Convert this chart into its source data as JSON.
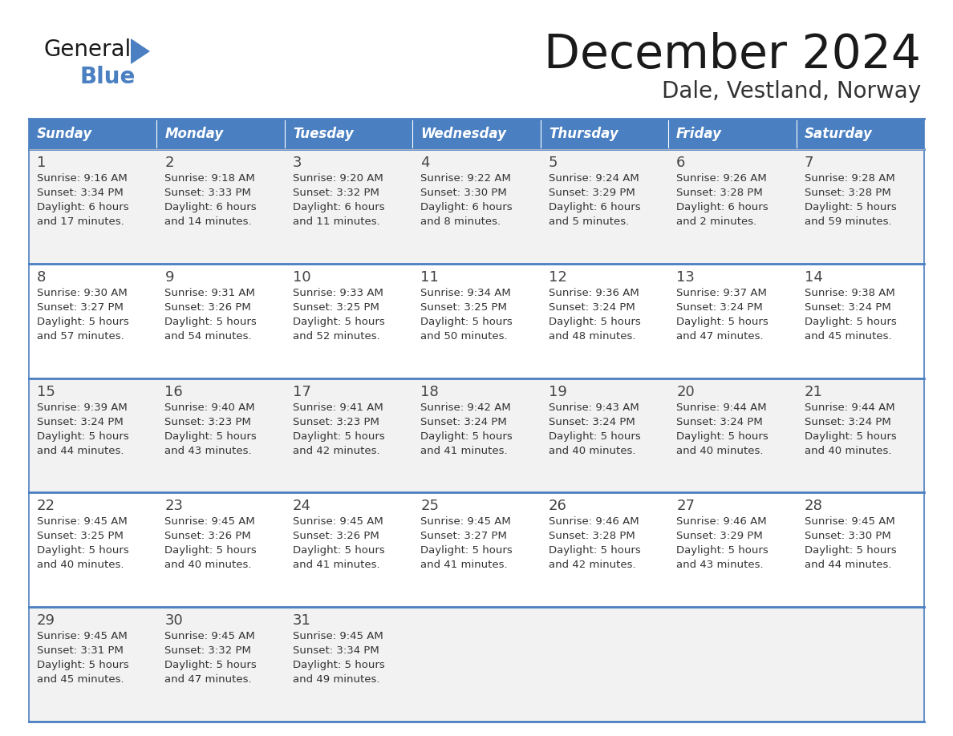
{
  "title": "December 2024",
  "subtitle": "Dale, Vestland, Norway",
  "header_bg_color": "#4a7fc1",
  "header_text_color": "#FFFFFF",
  "days_of_week": [
    "Sunday",
    "Monday",
    "Tuesday",
    "Wednesday",
    "Thursday",
    "Friday",
    "Saturday"
  ],
  "row_bg_colors": [
    "#F2F2F2",
    "#FFFFFF"
  ],
  "border_color": "#4a7fc1",
  "title_color": "#1a1a1a",
  "subtitle_color": "#333333",
  "cell_text_color": "#333333",
  "day_num_color": "#444444",
  "calendar_data": [
    [
      {
        "day": 1,
        "sunrise": "9:16 AM",
        "sunset": "3:34 PM",
        "daylight_h": "6 hours",
        "daylight_m": "17 minutes."
      },
      {
        "day": 2,
        "sunrise": "9:18 AM",
        "sunset": "3:33 PM",
        "daylight_h": "6 hours",
        "daylight_m": "14 minutes."
      },
      {
        "day": 3,
        "sunrise": "9:20 AM",
        "sunset": "3:32 PM",
        "daylight_h": "6 hours",
        "daylight_m": "11 minutes."
      },
      {
        "day": 4,
        "sunrise": "9:22 AM",
        "sunset": "3:30 PM",
        "daylight_h": "6 hours",
        "daylight_m": "8 minutes."
      },
      {
        "day": 5,
        "sunrise": "9:24 AM",
        "sunset": "3:29 PM",
        "daylight_h": "6 hours",
        "daylight_m": "5 minutes."
      },
      {
        "day": 6,
        "sunrise": "9:26 AM",
        "sunset": "3:28 PM",
        "daylight_h": "6 hours",
        "daylight_m": "2 minutes."
      },
      {
        "day": 7,
        "sunrise": "9:28 AM",
        "sunset": "3:28 PM",
        "daylight_h": "5 hours",
        "daylight_m": "59 minutes."
      }
    ],
    [
      {
        "day": 8,
        "sunrise": "9:30 AM",
        "sunset": "3:27 PM",
        "daylight_h": "5 hours",
        "daylight_m": "57 minutes."
      },
      {
        "day": 9,
        "sunrise": "9:31 AM",
        "sunset": "3:26 PM",
        "daylight_h": "5 hours",
        "daylight_m": "54 minutes."
      },
      {
        "day": 10,
        "sunrise": "9:33 AM",
        "sunset": "3:25 PM",
        "daylight_h": "5 hours",
        "daylight_m": "52 minutes."
      },
      {
        "day": 11,
        "sunrise": "9:34 AM",
        "sunset": "3:25 PM",
        "daylight_h": "5 hours",
        "daylight_m": "50 minutes."
      },
      {
        "day": 12,
        "sunrise": "9:36 AM",
        "sunset": "3:24 PM",
        "daylight_h": "5 hours",
        "daylight_m": "48 minutes."
      },
      {
        "day": 13,
        "sunrise": "9:37 AM",
        "sunset": "3:24 PM",
        "daylight_h": "5 hours",
        "daylight_m": "47 minutes."
      },
      {
        "day": 14,
        "sunrise": "9:38 AM",
        "sunset": "3:24 PM",
        "daylight_h": "5 hours",
        "daylight_m": "45 minutes."
      }
    ],
    [
      {
        "day": 15,
        "sunrise": "9:39 AM",
        "sunset": "3:24 PM",
        "daylight_h": "5 hours",
        "daylight_m": "44 minutes."
      },
      {
        "day": 16,
        "sunrise": "9:40 AM",
        "sunset": "3:23 PM",
        "daylight_h": "5 hours",
        "daylight_m": "43 minutes."
      },
      {
        "day": 17,
        "sunrise": "9:41 AM",
        "sunset": "3:23 PM",
        "daylight_h": "5 hours",
        "daylight_m": "42 minutes."
      },
      {
        "day": 18,
        "sunrise": "9:42 AM",
        "sunset": "3:24 PM",
        "daylight_h": "5 hours",
        "daylight_m": "41 minutes."
      },
      {
        "day": 19,
        "sunrise": "9:43 AM",
        "sunset": "3:24 PM",
        "daylight_h": "5 hours",
        "daylight_m": "40 minutes."
      },
      {
        "day": 20,
        "sunrise": "9:44 AM",
        "sunset": "3:24 PM",
        "daylight_h": "5 hours",
        "daylight_m": "40 minutes."
      },
      {
        "day": 21,
        "sunrise": "9:44 AM",
        "sunset": "3:24 PM",
        "daylight_h": "5 hours",
        "daylight_m": "40 minutes."
      }
    ],
    [
      {
        "day": 22,
        "sunrise": "9:45 AM",
        "sunset": "3:25 PM",
        "daylight_h": "5 hours",
        "daylight_m": "40 minutes."
      },
      {
        "day": 23,
        "sunrise": "9:45 AM",
        "sunset": "3:26 PM",
        "daylight_h": "5 hours",
        "daylight_m": "40 minutes."
      },
      {
        "day": 24,
        "sunrise": "9:45 AM",
        "sunset": "3:26 PM",
        "daylight_h": "5 hours",
        "daylight_m": "41 minutes."
      },
      {
        "day": 25,
        "sunrise": "9:45 AM",
        "sunset": "3:27 PM",
        "daylight_h": "5 hours",
        "daylight_m": "41 minutes."
      },
      {
        "day": 26,
        "sunrise": "9:46 AM",
        "sunset": "3:28 PM",
        "daylight_h": "5 hours",
        "daylight_m": "42 minutes."
      },
      {
        "day": 27,
        "sunrise": "9:46 AM",
        "sunset": "3:29 PM",
        "daylight_h": "5 hours",
        "daylight_m": "43 minutes."
      },
      {
        "day": 28,
        "sunrise": "9:45 AM",
        "sunset": "3:30 PM",
        "daylight_h": "5 hours",
        "daylight_m": "44 minutes."
      }
    ],
    [
      {
        "day": 29,
        "sunrise": "9:45 AM",
        "sunset": "3:31 PM",
        "daylight_h": "5 hours",
        "daylight_m": "45 minutes."
      },
      {
        "day": 30,
        "sunrise": "9:45 AM",
        "sunset": "3:32 PM",
        "daylight_h": "5 hours",
        "daylight_m": "47 minutes."
      },
      {
        "day": 31,
        "sunrise": "9:45 AM",
        "sunset": "3:34 PM",
        "daylight_h": "5 hours",
        "daylight_m": "49 minutes."
      },
      null,
      null,
      null,
      null
    ]
  ],
  "logo_general_color": "#1a1a1a",
  "logo_blue_color": "#4a7fc1",
  "logo_triangle_color": "#4a7fc1"
}
